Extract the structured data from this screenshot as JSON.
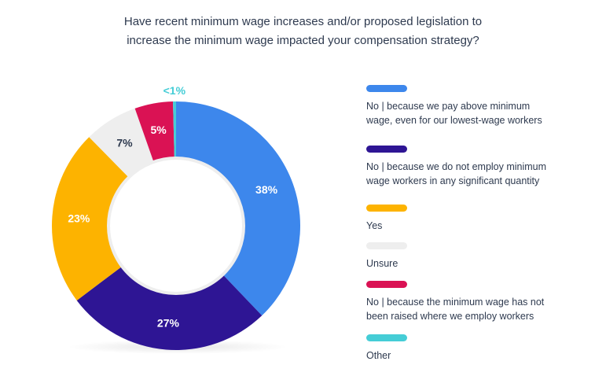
{
  "chart_data": {
    "type": "pie",
    "title": "Have recent minimum wage increases and/or proposed legislation to increase the minimum wage impacted your compensation strategy?",
    "title_lines": [
      "Have recent minimum wage increases and/or proposed legislation to",
      "increase the minimum wage impacted your compensation strategy?"
    ],
    "donut": true,
    "legend_position": "right",
    "slices": [
      {
        "label": "No  |  because we pay above minimum wage, even for our lowest-wage workers",
        "legend_lines": "No  |  because we pay above minimum\nwage, even for our lowest-wage workers",
        "value": 38,
        "value_label": "38%",
        "color": "#3d87ec",
        "label_color": "#ffffff"
      },
      {
        "label": "No  |  because we do not employ minimum wage workers in any significant quantity",
        "legend_lines": "No  |  because we do not employ minimum\nwage workers in any significant quantity",
        "value": 27,
        "value_label": "27%",
        "color": "#2e1594",
        "label_color": "#ffffff"
      },
      {
        "label": "Yes",
        "legend_lines": "Yes",
        "value": 23,
        "value_label": "23%",
        "color": "#fdb300",
        "label_color": "#ffffff"
      },
      {
        "label": "Unsure",
        "legend_lines": "Unsure",
        "value": 7,
        "value_label": "7%",
        "color": "#eeeeee",
        "label_color": "#2e3a4f"
      },
      {
        "label": "No  |  because the minimum wage has not been raised where we employ workers",
        "legend_lines": "No  |  because the minimum wage has not\nbeen raised where we employ workers",
        "value": 5,
        "value_label": "5%",
        "color": "#da1254",
        "label_color": "#ffffff"
      },
      {
        "label": "Other",
        "legend_lines": "Other",
        "value": 0.4,
        "value_label": "<1%",
        "color": "#45cdd6",
        "label_color": "#45cdd6"
      }
    ]
  }
}
